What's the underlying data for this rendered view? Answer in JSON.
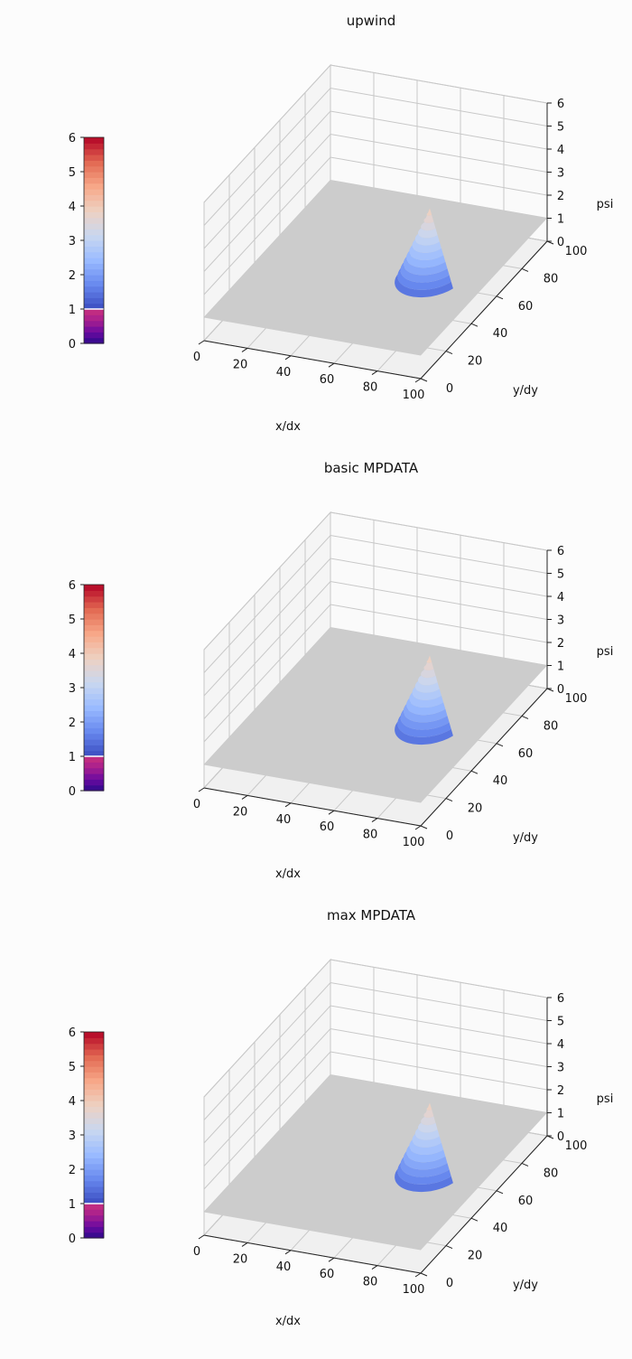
{
  "figure": {
    "background": "#fcfcfc"
  },
  "chart_data": [
    {
      "type": "surface",
      "title": "upwind",
      "xlabel": "x/dx",
      "ylabel": "y/dy",
      "zlabel": "psi",
      "xlim": [
        0,
        100
      ],
      "ylim": [
        0,
        100
      ],
      "zlim": [
        0,
        6
      ],
      "xticks": [
        "0",
        "20",
        "40",
        "60",
        "80",
        "100"
      ],
      "yticks": [
        "0",
        "20",
        "40",
        "60",
        "80",
        "100"
      ],
      "zticks": [
        "0",
        "1",
        "2",
        "3",
        "4",
        "5",
        "6"
      ],
      "colorbar_ticks": [
        "0",
        "1",
        "2",
        "3",
        "4",
        "5",
        "6"
      ],
      "grid": true,
      "peak": {
        "x": 75,
        "y": 50,
        "value": 4.0
      },
      "base_value": 1.0
    },
    {
      "type": "surface",
      "title": "basic MPDATA",
      "xlabel": "x/dx",
      "ylabel": "y/dy",
      "zlabel": "psi",
      "xlim": [
        0,
        100
      ],
      "ylim": [
        0,
        100
      ],
      "zlim": [
        0,
        6
      ],
      "xticks": [
        "0",
        "20",
        "40",
        "60",
        "80",
        "100"
      ],
      "yticks": [
        "0",
        "20",
        "40",
        "60",
        "80",
        "100"
      ],
      "zticks": [
        "0",
        "1",
        "2",
        "3",
        "4",
        "5",
        "6"
      ],
      "colorbar_ticks": [
        "0",
        "1",
        "2",
        "3",
        "4",
        "5",
        "6"
      ],
      "grid": true,
      "peak": {
        "x": 75,
        "y": 50,
        "value": 4.0
      },
      "base_value": 1.0
    },
    {
      "type": "surface",
      "title": "max MPDATA",
      "xlabel": "x/dx",
      "ylabel": "y/dy",
      "zlabel": "psi",
      "xlim": [
        0,
        100
      ],
      "ylim": [
        0,
        100
      ],
      "zlim": [
        0,
        6
      ],
      "xticks": [
        "0",
        "20",
        "40",
        "60",
        "80",
        "100"
      ],
      "yticks": [
        "0",
        "20",
        "40",
        "60",
        "80",
        "100"
      ],
      "zticks": [
        "0",
        "1",
        "2",
        "3",
        "4",
        "5",
        "6"
      ],
      "colorbar_ticks": [
        "0",
        "1",
        "2",
        "3",
        "4",
        "5",
        "6"
      ],
      "grid": true,
      "peak": {
        "x": 75,
        "y": 50,
        "value": 4.0
      },
      "base_value": 1.0
    }
  ],
  "colors": {
    "plateau": "#cccccc",
    "grid": "#c8c8c8",
    "colormap": [
      "#3b4cc0",
      "#6788ee",
      "#9abbff",
      "#c9d7f0",
      "#edd1c2",
      "#f7a889",
      "#e26952",
      "#b40426"
    ],
    "below_range": [
      "#2c0a8a",
      "#6a0aa0",
      "#a61f8f",
      "#c9307e"
    ]
  }
}
